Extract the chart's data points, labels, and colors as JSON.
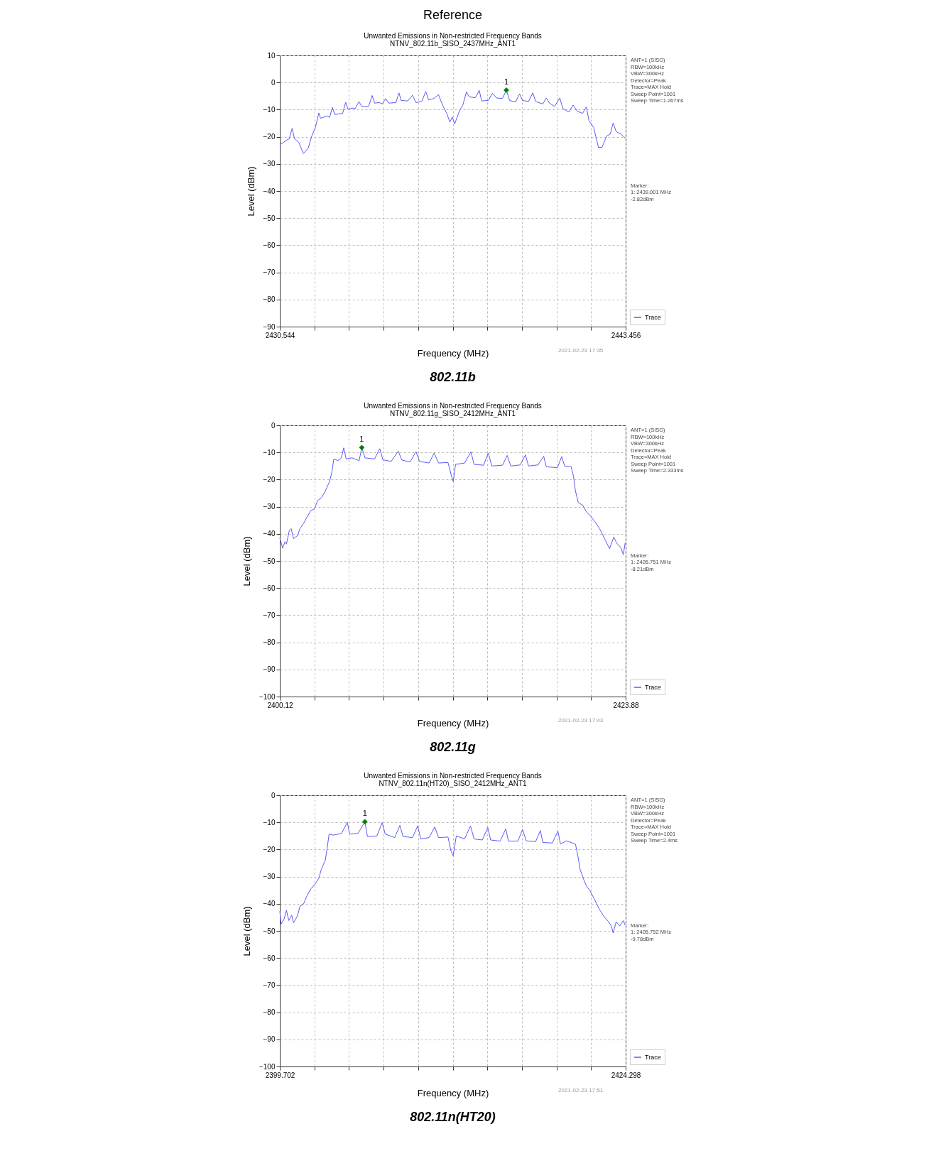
{
  "chart_data": [
    {
      "type": "line",
      "title": "Unwanted Emissions in Non-restricted Frequency Bands",
      "subtitle": "NTNV_802.11b_SISO_2437MHz_ANT1",
      "xlabel": "Frequency (MHz)",
      "ylabel": "Level (dBm)",
      "xlim": [
        2430.544,
        2443.456
      ],
      "ylim": [
        -90,
        10
      ],
      "xticks": [
        {
          "value": 2430.544,
          "label": "2430.544"
        },
        {
          "value": 2431.8352,
          "label": null
        },
        {
          "value": 2433.1264,
          "label": null
        },
        {
          "value": 2434.4176,
          "label": null
        },
        {
          "value": 2435.7088,
          "label": null
        },
        {
          "value": 2437.0,
          "label": null
        },
        {
          "value": 2438.2912,
          "label": null
        },
        {
          "value": 2439.5824,
          "label": null
        },
        {
          "value": 2440.8736,
          "label": null
        },
        {
          "value": 2442.1648,
          "label": null
        },
        {
          "value": 2443.456,
          "label": "2443.456"
        }
      ],
      "yticks": [
        -90,
        -80,
        -70,
        -60,
        -50,
        -40,
        -30,
        -20,
        -10,
        0,
        10
      ],
      "grid": true,
      "legend": "bottom right",
      "series": [
        {
          "name": "Trace",
          "color": "#5a5af5",
          "x": [
            2430.544,
            2430.809,
            2430.898,
            2431.004,
            2431.092,
            2431.252,
            2431.428,
            2431.605,
            2431.738,
            2431.871,
            2432.003,
            2432.065,
            2432.313,
            2432.401,
            2432.507,
            2432.596,
            2432.888,
            2433.003,
            2433.091,
            2433.241,
            2433.356,
            2433.498,
            2433.622,
            2433.861,
            2433.993,
            2434.082,
            2434.258,
            2434.365,
            2434.497,
            2434.612,
            2434.878,
            2434.993,
            2435.072,
            2435.32,
            2435.497,
            2435.629,
            2435.85,
            2435.992,
            2436.098,
            2436.293,
            2436.469,
            2436.602,
            2436.779,
            2436.894,
            2436.982,
            2437.071,
            2437.265,
            2437.372,
            2437.513,
            2437.619,
            2437.84,
            2437.99,
            2438.079,
            2438.327,
            2438.486,
            2438.636,
            2438.857,
            2439.001,
            2439.123,
            2439.344,
            2439.494,
            2439.609,
            2439.83,
            2439.989,
            2440.096,
            2440.361,
            2440.494,
            2440.608,
            2440.803,
            2440.998,
            2441.113,
            2441.334,
            2441.493,
            2441.643,
            2441.847,
            2441.988,
            2442.085,
            2442.262,
            2442.439,
            2442.572,
            2442.749,
            2442.881,
            2442.988,
            2443.102,
            2443.279,
            2443.439
          ],
          "values": [
            -23.0,
            -21.2,
            -20.7,
            -16.9,
            -20.7,
            -22.1,
            -26.2,
            -24.2,
            -19.7,
            -16.6,
            -11.2,
            -13.2,
            -12.3,
            -12.9,
            -9.2,
            -11.8,
            -11.4,
            -7.3,
            -9.9,
            -9.4,
            -9.6,
            -7.1,
            -9.0,
            -8.8,
            -4.8,
            -7.6,
            -7.4,
            -7.9,
            -5.9,
            -7.6,
            -7.4,
            -3.8,
            -6.6,
            -6.8,
            -4.7,
            -7.4,
            -6.9,
            -3.3,
            -6.4,
            -5.9,
            -4.5,
            -7.9,
            -11.4,
            -14.6,
            -12.7,
            -15.3,
            -10.1,
            -8.5,
            -3.5,
            -5.3,
            -5.6,
            -2.9,
            -6.8,
            -6.6,
            -4.0,
            -5.7,
            -5.9,
            -2.82,
            -6.6,
            -7.2,
            -4.2,
            -6.6,
            -7.0,
            -3.8,
            -7.0,
            -7.9,
            -5.7,
            -7.6,
            -8.8,
            -5.7,
            -9.6,
            -10.9,
            -8.3,
            -10.5,
            -11.4,
            -9.0,
            -14.0,
            -16.6,
            -23.9,
            -23.9,
            -19.7,
            -19.0,
            -14.9,
            -18.1,
            -19.0,
            -20.5
          ]
        },
        {
          "type": "scatter",
          "color": "#008000",
          "marker": "diamond",
          "x": [
            2439.001
          ],
          "values": [
            -2.82
          ]
        }
      ],
      "annotations": [
        "Reference",
        "ANT=1 (SISO)\nRBW=100kHz\nVBW=300kHz\nDetector=Peak\nTrace=MAX Hold\nSweep Point=1001\nSweep Time=1.267ms",
        "Marker:\n1: 2439.001 MHz\n   -2.82dBm",
        "2021-02-23 17:35",
        "802.11b",
        "1"
      ]
    },
    {
      "type": "line",
      "title": "Unwanted Emissions in Non-restricted Frequency Bands",
      "subtitle": "NTNV_802.11g_SISO_2412MHz_ANT1",
      "xlabel": "Frequency (MHz)",
      "ylabel": "Level (dBm)",
      "xlim": [
        2400.12,
        2423.88
      ],
      "ylim": [
        -100,
        0
      ],
      "xticks": [
        {
          "value": 2400.12,
          "label": "2400.12"
        },
        {
          "value": 2402.496,
          "label": null
        },
        {
          "value": 2404.872,
          "label": null
        },
        {
          "value": 2407.248,
          "label": null
        },
        {
          "value": 2409.624,
          "label": null
        },
        {
          "value": 2412.0,
          "label": null
        },
        {
          "value": 2414.376,
          "label": null
        },
        {
          "value": 2416.752,
          "label": null
        },
        {
          "value": 2419.128,
          "label": null
        },
        {
          "value": 2421.504,
          "label": null
        },
        {
          "value": 2423.88,
          "label": "2423.88"
        }
      ],
      "yticks": [
        -100,
        -90,
        -80,
        -70,
        -60,
        -50,
        -40,
        -30,
        -20,
        -10,
        0
      ],
      "grid": true,
      "legend": "bottom right",
      "series": [
        {
          "name": "Trace",
          "color": "#5a5af5",
          "x": [
            2400.12,
            2400.315,
            2400.478,
            2400.576,
            2400.771,
            2400.901,
            2401.064,
            2401.341,
            2401.503,
            2401.747,
            2401.992,
            2402.268,
            2402.48,
            2402.724,
            2402.968,
            2403.212,
            2403.538,
            2403.7,
            2403.83,
            2404.107,
            2404.351,
            2404.514,
            2404.677,
            2405.084,
            2405.572,
            2405.751,
            2405.979,
            2406.63,
            2406.988,
            2407.199,
            2407.769,
            2408.257,
            2408.501,
            2409.071,
            2409.478,
            2409.722,
            2410.373,
            2410.731,
            2411.024,
            2411.675,
            2411.919,
            2412.033,
            2412.195,
            2412.814,
            2413.253,
            2413.465,
            2414.116,
            2414.441,
            2414.685,
            2415.418,
            2415.743,
            2415.987,
            2416.638,
            2416.996,
            2417.208,
            2417.859,
            2418.249,
            2418.428,
            2419.193,
            2419.486,
            2419.681,
            2420.137,
            2420.3,
            2420.43,
            2420.625,
            2420.918,
            2421.195,
            2421.439,
            2421.764,
            2422.09,
            2422.497,
            2422.773,
            2423.066,
            2423.262,
            2423.555,
            2423.717,
            2423.847
          ],
          "values": [
            -41.6,
            -45.3,
            -42.9,
            -43.8,
            -38.8,
            -38.1,
            -41.8,
            -40.6,
            -38.1,
            -36.2,
            -33.8,
            -31.3,
            -31.0,
            -27.7,
            -26.8,
            -24.6,
            -20.7,
            -17.2,
            -12.4,
            -13.0,
            -12.0,
            -8.3,
            -12.4,
            -12.0,
            -13.0,
            -8.21,
            -12.0,
            -12.4,
            -8.6,
            -12.7,
            -13.3,
            -9.5,
            -12.8,
            -13.5,
            -9.7,
            -13.3,
            -13.9,
            -10.2,
            -13.9,
            -13.7,
            -18.8,
            -20.7,
            -14.4,
            -13.9,
            -9.8,
            -14.4,
            -14.7,
            -10.2,
            -15.0,
            -14.7,
            -11.1,
            -15.0,
            -14.6,
            -10.9,
            -15.0,
            -14.6,
            -11.4,
            -15.3,
            -15.6,
            -11.5,
            -15.0,
            -15.3,
            -18.9,
            -24.2,
            -28.5,
            -29.4,
            -32.0,
            -33.3,
            -35.5,
            -38.1,
            -42.5,
            -45.5,
            -41.2,
            -43.4,
            -45.1,
            -47.7,
            -43.4
          ]
        },
        {
          "type": "scatter",
          "color": "#008000",
          "marker": "diamond",
          "x": [
            2405.751
          ],
          "values": [
            -8.21
          ]
        }
      ],
      "annotations": [
        "ANT=1 (SISO)\nRBW=100kHz\nVBW=300kHz\nDetector=Peak\nTrace=MAX Hold\nSweep Point=1001\nSweep Time=2.333ms",
        "Marker:\n1: 2405.751 MHz\n   -8.21dBm",
        "2021-02-23 17:43",
        "802.11g",
        "1"
      ]
    },
    {
      "type": "line",
      "title": "Unwanted Emissions in Non-restricted Frequency Bands",
      "subtitle": "NTNV_802.11n(HT20)_SISO_2412MHz_ANT1",
      "xlabel": "Frequency (MHz)",
      "ylabel": "Level (dBm)",
      "xlim": [
        2399.702,
        2424.298
      ],
      "ylim": [
        -100,
        0
      ],
      "xticks": [
        {
          "value": 2399.702,
          "label": "2399.702"
        },
        {
          "value": 2402.1616,
          "label": null
        },
        {
          "value": 2404.6212,
          "label": null
        },
        {
          "value": 2407.0808,
          "label": null
        },
        {
          "value": 2409.5404,
          "label": null
        },
        {
          "value": 2412.0,
          "label": null
        },
        {
          "value": 2414.4596,
          "label": null
        },
        {
          "value": 2416.9192,
          "label": null
        },
        {
          "value": 2419.3788,
          "label": null
        },
        {
          "value": 2421.8384,
          "label": null
        },
        {
          "value": 2424.298,
          "label": "2424.298"
        }
      ],
      "yticks": [
        -100,
        -90,
        -80,
        -70,
        -60,
        -50,
        -40,
        -30,
        -20,
        -10,
        0
      ],
      "grid": true,
      "legend": "bottom right",
      "series": [
        {
          "name": "Trace",
          "color": "#5a5af5",
          "x": [
            2399.702,
            2399.786,
            2400.005,
            2400.174,
            2400.342,
            2400.544,
            2400.679,
            2400.966,
            2401.134,
            2401.387,
            2401.639,
            2401.926,
            2402.229,
            2402.482,
            2402.65,
            2402.937,
            2403.071,
            2403.206,
            2403.493,
            2404.082,
            2404.503,
            2404.672,
            2405.262,
            2405.752,
            2405.935,
            2406.609,
            2406.98,
            2407.199,
            2407.873,
            2408.243,
            2408.462,
            2409.136,
            2409.507,
            2409.726,
            2410.316,
            2410.72,
            2410.989,
            2411.663,
            2411.866,
            2412.034,
            2412.253,
            2412.843,
            2413.264,
            2413.517,
            2414.106,
            2414.494,
            2414.696,
            2415.37,
            2415.774,
            2415.959,
            2416.633,
            2416.97,
            2417.223,
            2417.897,
            2418.234,
            2418.402,
            2419.076,
            2419.48,
            2419.666,
            2420.087,
            2420.727,
            2420.896,
            2421.064,
            2421.3,
            2421.519,
            2421.772,
            2422.109,
            2422.445,
            2422.782,
            2423.086,
            2423.288,
            2423.406,
            2423.625,
            2423.877,
            2424.13,
            2424.265
          ],
          "values": [
            -42.7,
            -47.5,
            -45.7,
            -42.4,
            -46.2,
            -44.2,
            -47.0,
            -44.4,
            -40.9,
            -40.1,
            -37.0,
            -34.4,
            -32.6,
            -30.5,
            -27.4,
            -23.9,
            -19.5,
            -14.3,
            -14.7,
            -14.1,
            -10.0,
            -14.3,
            -14.1,
            -9.78,
            -15.2,
            -15.0,
            -10.1,
            -14.3,
            -15.6,
            -11.1,
            -15.2,
            -15.6,
            -11.3,
            -16.1,
            -15.6,
            -11.7,
            -15.6,
            -15.4,
            -20.4,
            -22.3,
            -15.0,
            -16.1,
            -11.3,
            -16.1,
            -16.5,
            -11.9,
            -16.5,
            -16.9,
            -12.4,
            -16.9,
            -16.9,
            -12.6,
            -16.8,
            -17.1,
            -13.0,
            -17.4,
            -17.6,
            -13.3,
            -18.0,
            -16.8,
            -18.0,
            -22.2,
            -27.4,
            -30.9,
            -33.5,
            -35.3,
            -38.7,
            -42.2,
            -44.9,
            -46.6,
            -48.3,
            -50.8,
            -46.6,
            -48.2,
            -46.2,
            -47.9
          ]
        },
        {
          "type": "scatter",
          "color": "#008000",
          "marker": "diamond",
          "x": [
            2405.752
          ],
          "values": [
            -9.78
          ]
        }
      ],
      "annotations": [
        "ANT=1 (SISO)\nRBW=100kHz\nVBW=300kHz\nDetector=Peak\nTrace=MAX Hold\nSweep Point=1001\nSweep Time=2.4ms",
        "Marker:\n1: 2405.752 MHz\n   -9.78dBm",
        "2021-02-23 17:51",
        "802.11n(HT20)",
        "1"
      ]
    }
  ]
}
